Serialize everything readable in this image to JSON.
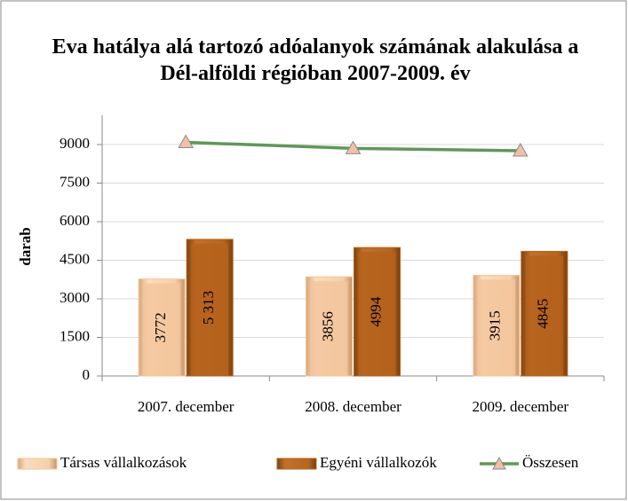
{
  "chart_data": {
    "type": "bar",
    "title": "Eva hatálya alá tartozó adóalanyok számának alakulása a Dél-alföldi régióban 2007-2009. év",
    "y_label": "darab",
    "categories": [
      "2007. december",
      "2008. december",
      "2009. december"
    ],
    "series": [
      {
        "name": "Társas vállalkozások",
        "color": "#f3c69c",
        "values": [
          3772,
          3856,
          3915
        ]
      },
      {
        "name": "Egyéni vállalkozók",
        "color": "#b5621c",
        "values": [
          5313,
          4994,
          4845
        ],
        "value_labels": [
          "5 313",
          "4994",
          "4845"
        ]
      },
      {
        "name": "Összesen",
        "type": "line",
        "color": "#5f9858",
        "values": [
          9085,
          8850,
          8760
        ]
      }
    ],
    "ylim": [
      0,
      10000
    ],
    "yticks": [
      0,
      1500,
      3000,
      4500,
      6000,
      7500,
      9000
    ],
    "grid": true,
    "legend": "bottom"
  }
}
